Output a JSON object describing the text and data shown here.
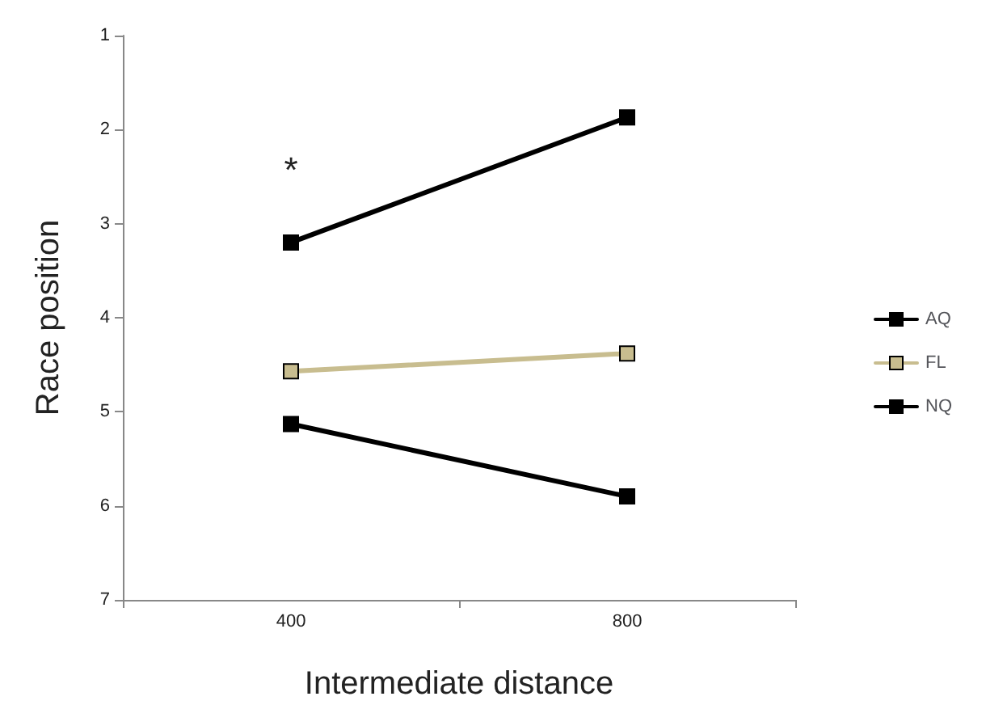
{
  "chart_data": {
    "type": "line",
    "xlabel": "Intermediate distance",
    "ylabel": "Race position",
    "categories": [
      "400",
      "800"
    ],
    "series": [
      {
        "name": "AQ",
        "color": "#000000",
        "values": [
          3.2,
          1.87
        ]
      },
      {
        "name": "FL",
        "color": "#c8bd8f",
        "values": [
          4.57,
          4.38
        ]
      },
      {
        "name": "NQ",
        "color": "#000000",
        "values": [
          5.13,
          5.9
        ]
      }
    ],
    "ylim": [
      7,
      1
    ],
    "yticks": [
      1,
      2,
      3,
      4,
      5,
      6,
      7
    ],
    "grid": false,
    "legend": "right",
    "marker": "square",
    "line_style": "solid",
    "annotations": [
      "*"
    ]
  }
}
